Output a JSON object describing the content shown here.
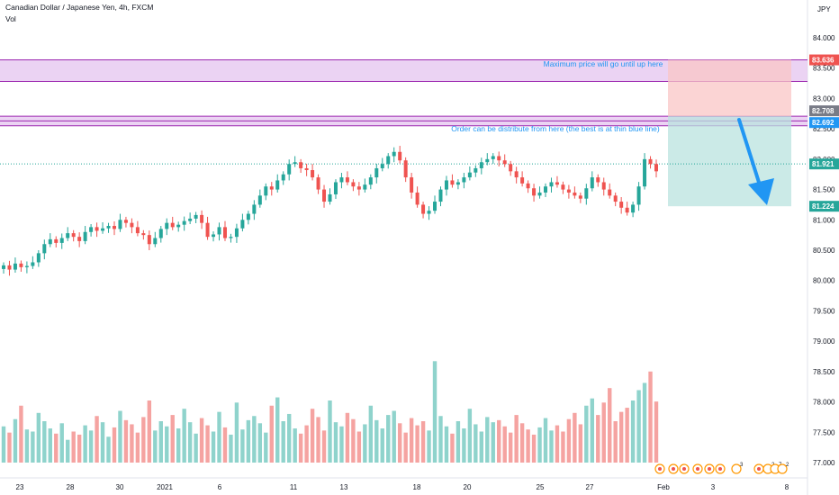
{
  "header": {
    "title": "Canadian Dollar / Japanese Yen, 4h, FXCM",
    "vol_label": "Vol",
    "currency": "JPY"
  },
  "colors": {
    "up": "#26a69a",
    "down": "#ef5350",
    "vol_up": "#8fd3cc",
    "vol_down": "#f5a3a1",
    "zone": "#e6c8f0",
    "zone_border": "#9c27b0",
    "annotation": "#2196f3",
    "target_zone": "#b9e3df",
    "stop_zone": "#f9c6c6"
  },
  "chart_data": {
    "type": "candlestick",
    "title": "Canadian Dollar / Japanese Yen, 4h, FXCM",
    "y_ticks": [
      "84.000",
      "83.500",
      "83.000",
      "82.500",
      "82.000",
      "81.500",
      "81.000",
      "80.500",
      "80.000",
      "79.500",
      "79.000",
      "78.500",
      "78.000",
      "77.500",
      "77.000"
    ],
    "x_ticks": [
      "23",
      "28",
      "30",
      "2021",
      "6",
      "11",
      "13",
      "18",
      "20",
      "25",
      "27",
      "Feb",
      "3",
      "8"
    ],
    "ylim": [
      76.85,
      84.55
    ],
    "closes": [
      80.25,
      80.18,
      80.28,
      80.22,
      80.24,
      80.3,
      80.45,
      80.6,
      80.68,
      80.62,
      80.7,
      80.78,
      80.72,
      80.65,
      80.8,
      80.88,
      80.82,
      80.86,
      80.9,
      80.85,
      81.0,
      80.95,
      80.88,
      80.78,
      80.75,
      80.6,
      80.7,
      80.85,
      80.95,
      80.88,
      80.92,
      80.98,
      81.02,
      81.08,
      80.95,
      80.72,
      80.76,
      80.88,
      80.7,
      80.72,
      80.86,
      81.0,
      81.1,
      81.25,
      81.4,
      81.55,
      81.5,
      81.65,
      81.75,
      81.92,
      81.95,
      81.85,
      81.82,
      81.7,
      81.5,
      81.3,
      81.42,
      81.62,
      81.7,
      81.62,
      81.55,
      81.5,
      81.58,
      81.7,
      81.85,
      81.92,
      82.05,
      82.12,
      81.98,
      81.7,
      81.45,
      81.25,
      81.1,
      81.15,
      81.3,
      81.5,
      81.65,
      81.58,
      81.62,
      81.7,
      81.78,
      81.85,
      81.95,
      82.0,
      82.05,
      81.98,
      81.92,
      81.8,
      81.7,
      81.6,
      81.52,
      81.4,
      81.45,
      81.55,
      81.62,
      81.58,
      81.5,
      81.45,
      81.4,
      81.35,
      81.52,
      81.7,
      81.62,
      81.5,
      81.4,
      81.3,
      81.2,
      81.12,
      81.25,
      81.55,
      82.0,
      81.92,
      81.8
    ],
    "volumes": [
      0.35,
      0.29,
      0.42,
      0.55,
      0.32,
      0.3,
      0.48,
      0.4,
      0.33,
      0.28,
      0.38,
      0.22,
      0.3,
      0.27,
      0.36,
      0.31,
      0.45,
      0.39,
      0.25,
      0.34,
      0.5,
      0.41,
      0.37,
      0.29,
      0.44,
      0.6,
      0.31,
      0.4,
      0.35,
      0.46,
      0.33,
      0.52,
      0.39,
      0.28,
      0.43,
      0.36,
      0.3,
      0.49,
      0.34,
      0.27,
      0.58,
      0.32,
      0.41,
      0.45,
      0.38,
      0.29,
      0.55,
      0.63,
      0.4,
      0.47,
      0.33,
      0.28,
      0.36,
      0.52,
      0.44,
      0.31,
      0.6,
      0.39,
      0.35,
      0.48,
      0.42,
      0.3,
      0.37,
      0.55,
      0.41,
      0.33,
      0.46,
      0.5,
      0.38,
      0.29,
      0.43,
      0.36,
      0.4,
      0.31,
      0.98,
      0.45,
      0.35,
      0.28,
      0.4,
      0.33,
      0.52,
      0.37,
      0.3,
      0.44,
      0.39,
      0.41,
      0.35,
      0.29,
      0.46,
      0.38,
      0.32,
      0.27,
      0.34,
      0.43,
      0.31,
      0.36,
      0.3,
      0.42,
      0.48,
      0.37,
      0.55,
      0.62,
      0.46,
      0.58,
      0.72,
      0.4,
      0.49,
      0.53,
      0.6,
      0.7,
      0.77,
      0.88,
      0.59
    ]
  },
  "price_labels": [
    {
      "text": "83.636",
      "color": "#ef5350"
    },
    {
      "text": "82.708",
      "color": "#787b86"
    },
    {
      "text": "82.692",
      "color": "#2196f3"
    },
    {
      "text": "81.921",
      "color": "#26a69a"
    },
    {
      "text": "81.224",
      "color": "#26a69a"
    }
  ],
  "annotations": {
    "max_price": "Maximum price will go until up here",
    "order": "Order can be distribute from here (the best is at thin blue line)"
  },
  "events": [
    {
      "label": "",
      "type": "flag"
    },
    {
      "label": "",
      "type": "flag"
    },
    {
      "label": "",
      "type": "flag"
    },
    {
      "label": "",
      "type": "flag"
    },
    {
      "label": "",
      "type": "flag"
    },
    {
      "label": "",
      "type": "flag"
    },
    {
      "label": "3",
      "type": "count"
    },
    {
      "label": "",
      "type": "flag"
    },
    {
      "label": "2",
      "type": "count"
    },
    {
      "label": "7",
      "type": "count"
    },
    {
      "label": "2",
      "type": "count"
    }
  ]
}
